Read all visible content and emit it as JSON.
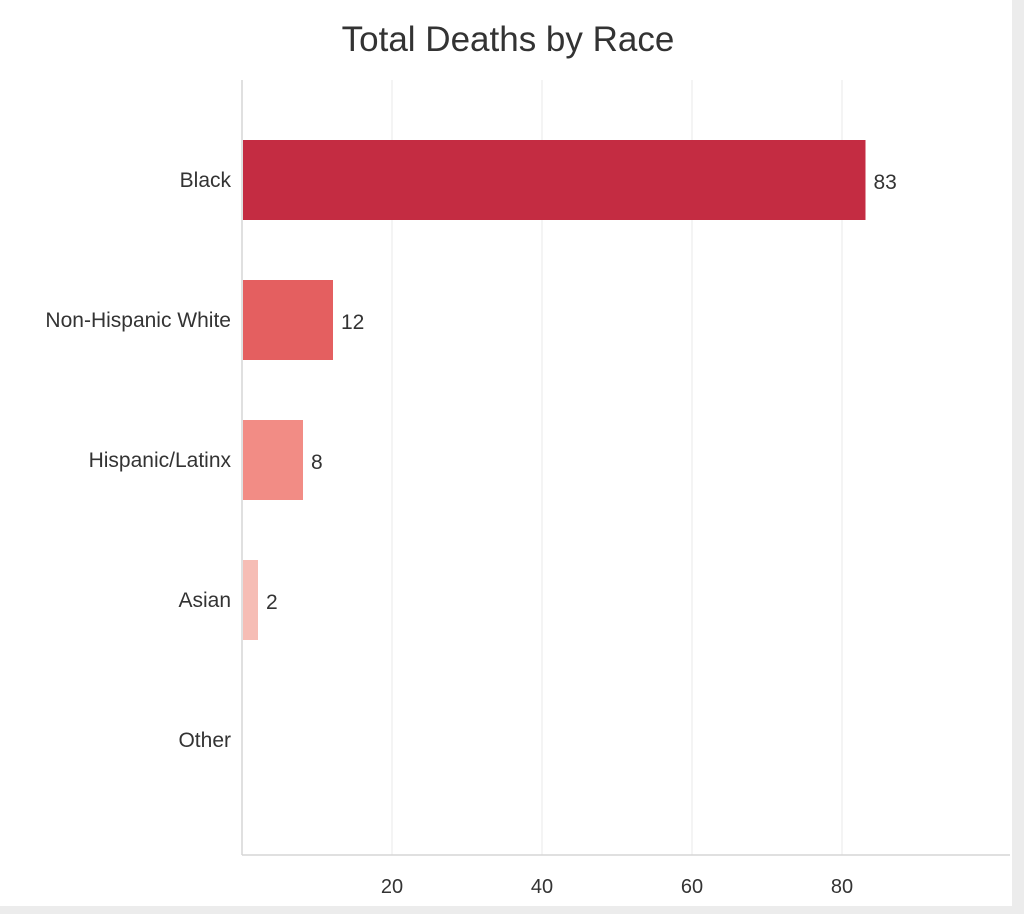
{
  "chart_data": {
    "type": "bar",
    "orientation": "horizontal",
    "title": "Total Deaths by Race",
    "categories": [
      "Black",
      "Non-Hispanic White",
      "Hispanic/Latinx",
      "Asian",
      "Other"
    ],
    "values": [
      83,
      12,
      8,
      2,
      0
    ],
    "data_labels": [
      "83",
      "12",
      "8",
      "2",
      ""
    ],
    "colors": [
      "#c42c42",
      "#e45f60",
      "#f28c85",
      "#f6bdb5",
      "#f8d7d2"
    ],
    "x_ticks": [
      20,
      40,
      60,
      80
    ],
    "xlim": [
      0,
      102
    ],
    "xlabel": "",
    "ylabel": "",
    "grid": true,
    "legend": "none"
  }
}
